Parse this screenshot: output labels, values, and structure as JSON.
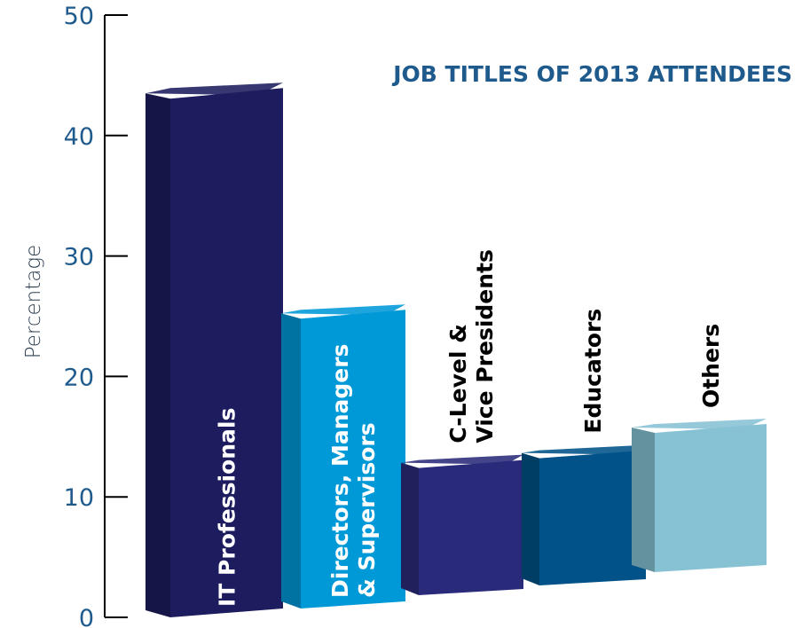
{
  "chart_data": {
    "type": "bar",
    "title": "JOB TITLES OF 2013 ATTENDEES",
    "ylabel": "Percentage",
    "xlabel": "",
    "ylim": [
      0,
      50
    ],
    "yticks": [
      0,
      10,
      20,
      30,
      40,
      50
    ],
    "categories": [
      [
        "IT Professionals"
      ],
      [
        "Directors, Managers",
        "& Supervisors"
      ],
      [
        "C-Level &",
        "Vice Presidents"
      ],
      [
        "Educators"
      ],
      [
        "Others"
      ]
    ],
    "values": [
      43.5,
      24.5,
      11,
      11,
      12
    ],
    "colors": [
      "#1c1c5e",
      "#0099d8",
      "#2a2a7a",
      "#005288",
      "#86c2d4"
    ],
    "label_colors": [
      "#ffffff",
      "#ffffff",
      "#000000",
      "#000000",
      "#000000"
    ],
    "grid": false,
    "legend": "none"
  }
}
